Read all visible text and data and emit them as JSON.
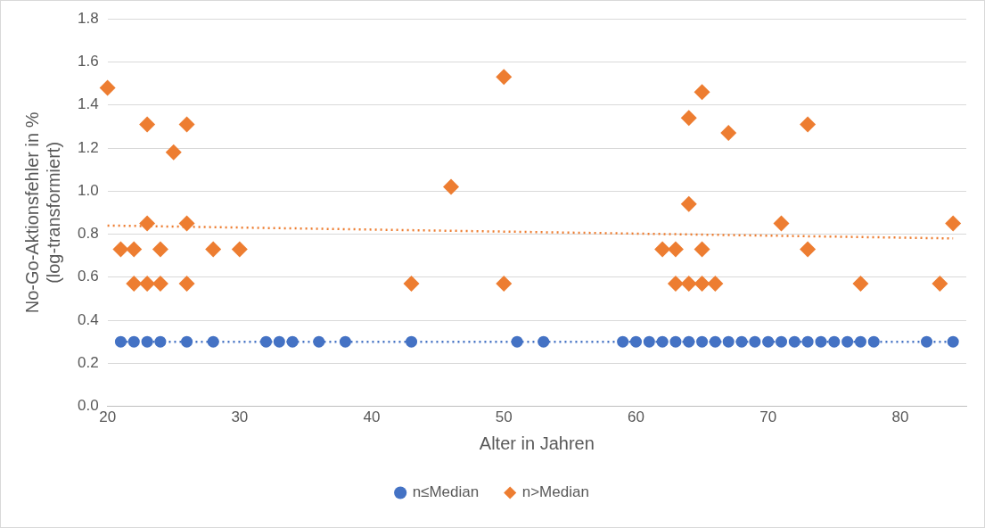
{
  "chart_data": {
    "type": "scatter",
    "xlabel": "Alter in Jahren",
    "ylabel": "No-Go-Aktionsfehler in %\n(log-transformiert)",
    "xlim": [
      20,
      85
    ],
    "xticks": [
      20,
      30,
      40,
      50,
      60,
      70,
      80
    ],
    "ylim": [
      0,
      1.8
    ],
    "yticks": [
      {
        "value": 0,
        "label": "0.0"
      },
      0.2,
      0.4,
      0.6,
      0.8,
      {
        "value": 1,
        "label": "1.0"
      },
      1.2,
      1.4,
      1.6,
      1.8
    ],
    "grid": "y",
    "legend": "bottom",
    "series": [
      {
        "name": "n≤Median",
        "color": "#4472c4",
        "marker": "circle",
        "x": [
          21,
          22,
          23,
          24,
          26,
          28,
          32,
          33,
          34,
          36,
          38,
          43,
          51,
          53,
          59,
          60,
          61,
          62,
          63,
          64,
          65,
          66,
          67,
          68,
          69,
          70,
          71,
          72,
          73,
          74,
          75,
          76,
          77,
          78,
          82,
          84
        ],
        "values": [
          0.3,
          0.3,
          0.3,
          0.3,
          0.3,
          0.3,
          0.3,
          0.3,
          0.3,
          0.3,
          0.3,
          0.3,
          0.3,
          0.3,
          0.3,
          0.3,
          0.3,
          0.3,
          0.3,
          0.3,
          0.3,
          0.3,
          0.3,
          0.3,
          0.3,
          0.3,
          0.3,
          0.3,
          0.3,
          0.3,
          0.3,
          0.3,
          0.3,
          0.3,
          0.3,
          0.3
        ]
      },
      {
        "name": "n>Median",
        "color": "#ed7d31",
        "marker": "diamond",
        "x": [
          20,
          21,
          22,
          22,
          23,
          23,
          23,
          24,
          24,
          25,
          26,
          26,
          26,
          28,
          30,
          43,
          46,
          50,
          50,
          62,
          63,
          63,
          64,
          64,
          64,
          65,
          65,
          65,
          66,
          67,
          71,
          73,
          73,
          77,
          83,
          84
        ],
        "values": [
          1.48,
          0.73,
          0.73,
          0.57,
          1.31,
          0.85,
          0.57,
          0.73,
          0.57,
          1.18,
          1.31,
          0.85,
          0.57,
          0.73,
          0.73,
          0.57,
          1.02,
          1.53,
          0.57,
          0.73,
          0.73,
          0.57,
          1.34,
          0.94,
          0.57,
          1.46,
          0.73,
          0.57,
          0.57,
          1.27,
          0.85,
          1.31,
          0.73,
          0.57,
          0.57,
          0.85
        ]
      },
      {
        "type": "line",
        "color": "#4472c4",
        "marker": "none",
        "line_style": "dotted",
        "x": [
          21,
          84
        ],
        "values": [
          0.3,
          0.3
        ]
      },
      {
        "type": "line",
        "color": "#ed7d31",
        "marker": "none",
        "line_style": "dotted",
        "x": [
          20,
          84
        ],
        "values": [
          0.84,
          0.78
        ]
      }
    ]
  }
}
